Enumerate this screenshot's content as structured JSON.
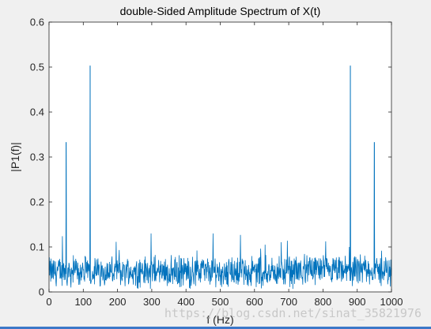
{
  "chart_data": {
    "type": "line",
    "title": "double-Sided Amplitude Spectrum of X(t)",
    "xlabel": "f (Hz)",
    "ylabel": "|P1(f)|",
    "xlim": [
      0,
      1000
    ],
    "ylim": [
      0,
      0.6
    ],
    "xticks": [
      0,
      100,
      200,
      300,
      400,
      500,
      600,
      700,
      800,
      900,
      1000
    ],
    "yticks": [
      0,
      0.1,
      0.2,
      0.3,
      0.4,
      0.5,
      0.6
    ],
    "xtick_labels": [
      "0",
      "100",
      "200",
      "300",
      "400",
      "500",
      "600",
      "700",
      "800",
      "900",
      "1000"
    ],
    "ytick_labels": [
      "0",
      "0.1",
      "0.2",
      "0.3",
      "0.4",
      "0.5",
      "0.6"
    ],
    "grid": false,
    "series_color": "#0072bd",
    "noise_floor": {
      "x_range": [
        0,
        1000
      ],
      "typical_range": [
        0.0,
        0.09
      ],
      "max": 0.13
    },
    "peaks": [
      {
        "x": 50,
        "y": 0.333
      },
      {
        "x": 120,
        "y": 0.503
      },
      {
        "x": 880,
        "y": 0.503
      },
      {
        "x": 950,
        "y": 0.333
      }
    ]
  },
  "watermark": "https://blog.csdn.net/sinat_35821976",
  "colors": {
    "background": "#f0f0f0",
    "plot_area": "#ffffff",
    "axis": "#262626",
    "bottom_bar": "#3c78c8"
  }
}
